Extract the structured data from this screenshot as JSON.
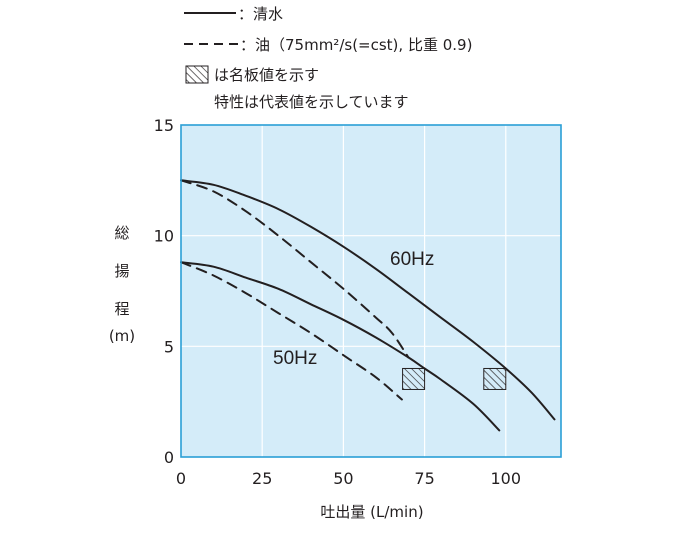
{
  "chart_data": {
    "type": "line",
    "legend": {
      "solid_label": "：清水",
      "dashed_label": "：油（75mm²/s(=cst), 比重 0.9)",
      "hatch_label_line1": "は名板値を示す",
      "hatch_label_line2": "特性は代表値を示しています"
    },
    "xlabel": "吐出量 (L/min)",
    "ylabel": [
      "総",
      "揚",
      "程",
      "(m)"
    ],
    "xlim": [
      0,
      117
    ],
    "ylim": [
      0,
      15
    ],
    "xticks": [
      "0",
      "25",
      "50",
      "75",
      "100"
    ],
    "yticks": [
      "0",
      "5",
      "10",
      "15"
    ],
    "grid": true,
    "colors": {
      "plot_background": "#d4ecf9",
      "grid": "#ffffff",
      "frame": "#2a9fd6",
      "line": "#231f20"
    },
    "series": [
      {
        "name": "60Hz",
        "style": "solid",
        "x": [
          0,
          10,
          20,
          30,
          40,
          50,
          60,
          70,
          80,
          90,
          100,
          108,
          115
        ],
        "y": [
          12.5,
          12.3,
          11.8,
          11.2,
          10.4,
          9.5,
          8.5,
          7.4,
          6.3,
          5.2,
          4.0,
          2.9,
          1.7
        ]
      },
      {
        "style": "dashed",
        "x": [
          0,
          10,
          20,
          30,
          40,
          50,
          60,
          65,
          70
        ],
        "y": [
          12.5,
          12.0,
          11.1,
          10.0,
          8.8,
          7.6,
          6.3,
          5.6,
          4.5
        ]
      },
      {
        "name": "50Hz",
        "style": "solid",
        "x": [
          0,
          10,
          20,
          30,
          40,
          50,
          60,
          70,
          75,
          80,
          90,
          98
        ],
        "y": [
          8.8,
          8.6,
          8.1,
          7.6,
          6.9,
          6.2,
          5.4,
          4.5,
          4.0,
          3.5,
          2.4,
          1.2
        ]
      },
      {
        "style": "dashed",
        "x": [
          0,
          10,
          20,
          30,
          40,
          50,
          60,
          68
        ],
        "y": [
          8.8,
          8.2,
          7.4,
          6.5,
          5.6,
          4.6,
          3.6,
          2.6
        ]
      }
    ],
    "rated_points": [
      {
        "x": 75,
        "y": 4.0
      },
      {
        "x": 100,
        "y": 4.0
      }
    ]
  }
}
